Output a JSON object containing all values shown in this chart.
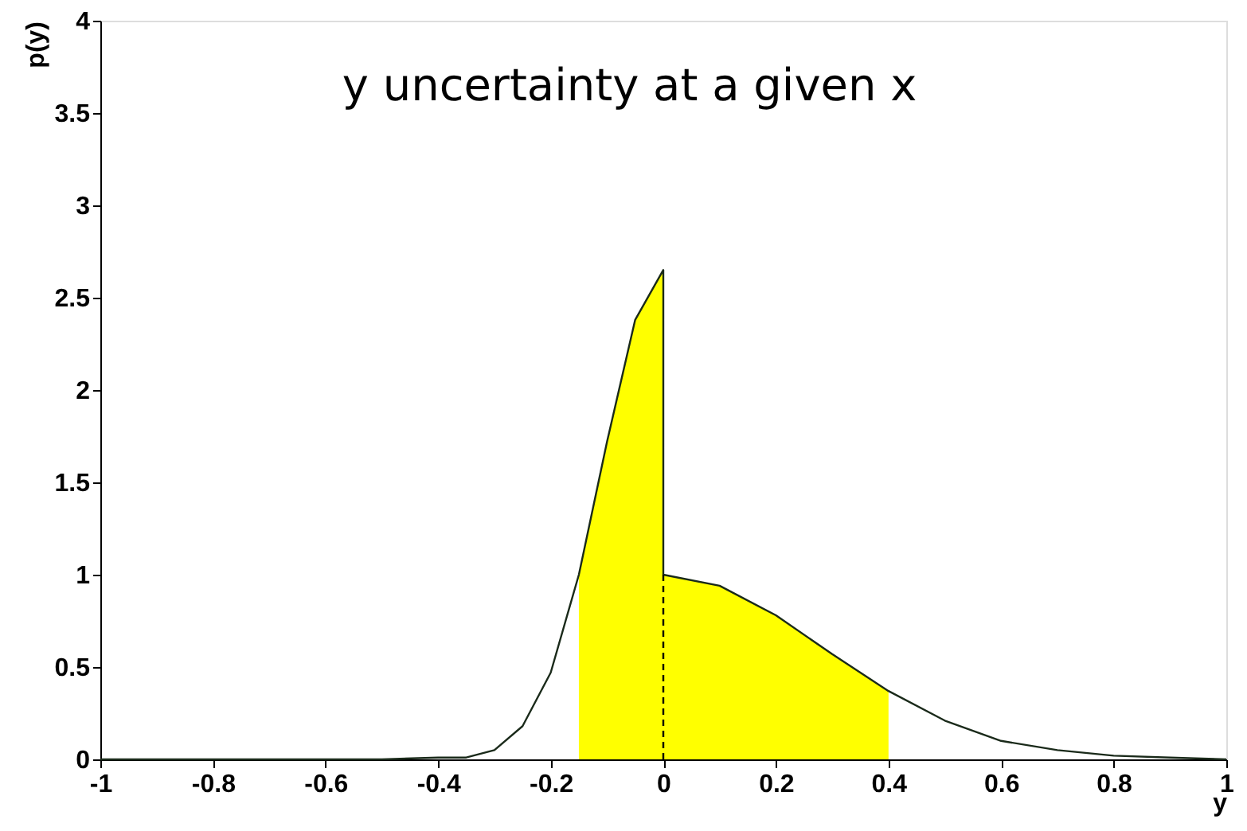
{
  "chart_data": {
    "type": "line",
    "xlabel": "y",
    "ylabel": "p(y)",
    "annotations": [
      "y uncertainty at a given x"
    ],
    "xlim": [
      -1,
      1
    ],
    "xticks": [
      -1,
      -0.8,
      -0.6,
      -0.4,
      -0.2,
      0,
      0.2,
      0.4,
      0.6,
      0.8,
      1
    ],
    "ylim": [
      0,
      4
    ],
    "yticks": [
      0,
      0.5,
      1,
      1.5,
      2,
      2.5,
      3,
      3.5,
      4
    ],
    "grid": false,
    "series": [
      {
        "type": "area",
        "color": "#ffff00",
        "x": [
          -0.15,
          -0.1,
          -0.05,
          0,
          0,
          0.1,
          0.2,
          0.3,
          0.4
        ],
        "values": [
          1.0,
          1.72,
          2.38,
          2.65,
          1.0,
          0.94,
          0.78,
          0.57,
          0.37
        ]
      },
      {
        "color": "#1a2a1a",
        "line_style": "solid",
        "x": [
          -1,
          -0.5,
          -0.4,
          -0.35,
          -0.3,
          -0.25,
          -0.2,
          -0.15,
          -0.1,
          -0.05,
          0,
          0,
          0.1,
          0.2,
          0.3,
          0.4,
          0.5,
          0.6,
          0.7,
          0.8,
          0.9,
          1
        ],
        "values": [
          0,
          0,
          0.01,
          0.01,
          0.05,
          0.18,
          0.47,
          1.0,
          1.72,
          2.38,
          2.65,
          1.0,
          0.94,
          0.78,
          0.57,
          0.37,
          0.21,
          0.1,
          0.05,
          0.02,
          0.01,
          0
        ]
      },
      {
        "type": "line",
        "color": "#000000",
        "line_style": "dashed",
        "x": [
          0,
          0
        ],
        "values": [
          0,
          1
        ]
      }
    ]
  }
}
